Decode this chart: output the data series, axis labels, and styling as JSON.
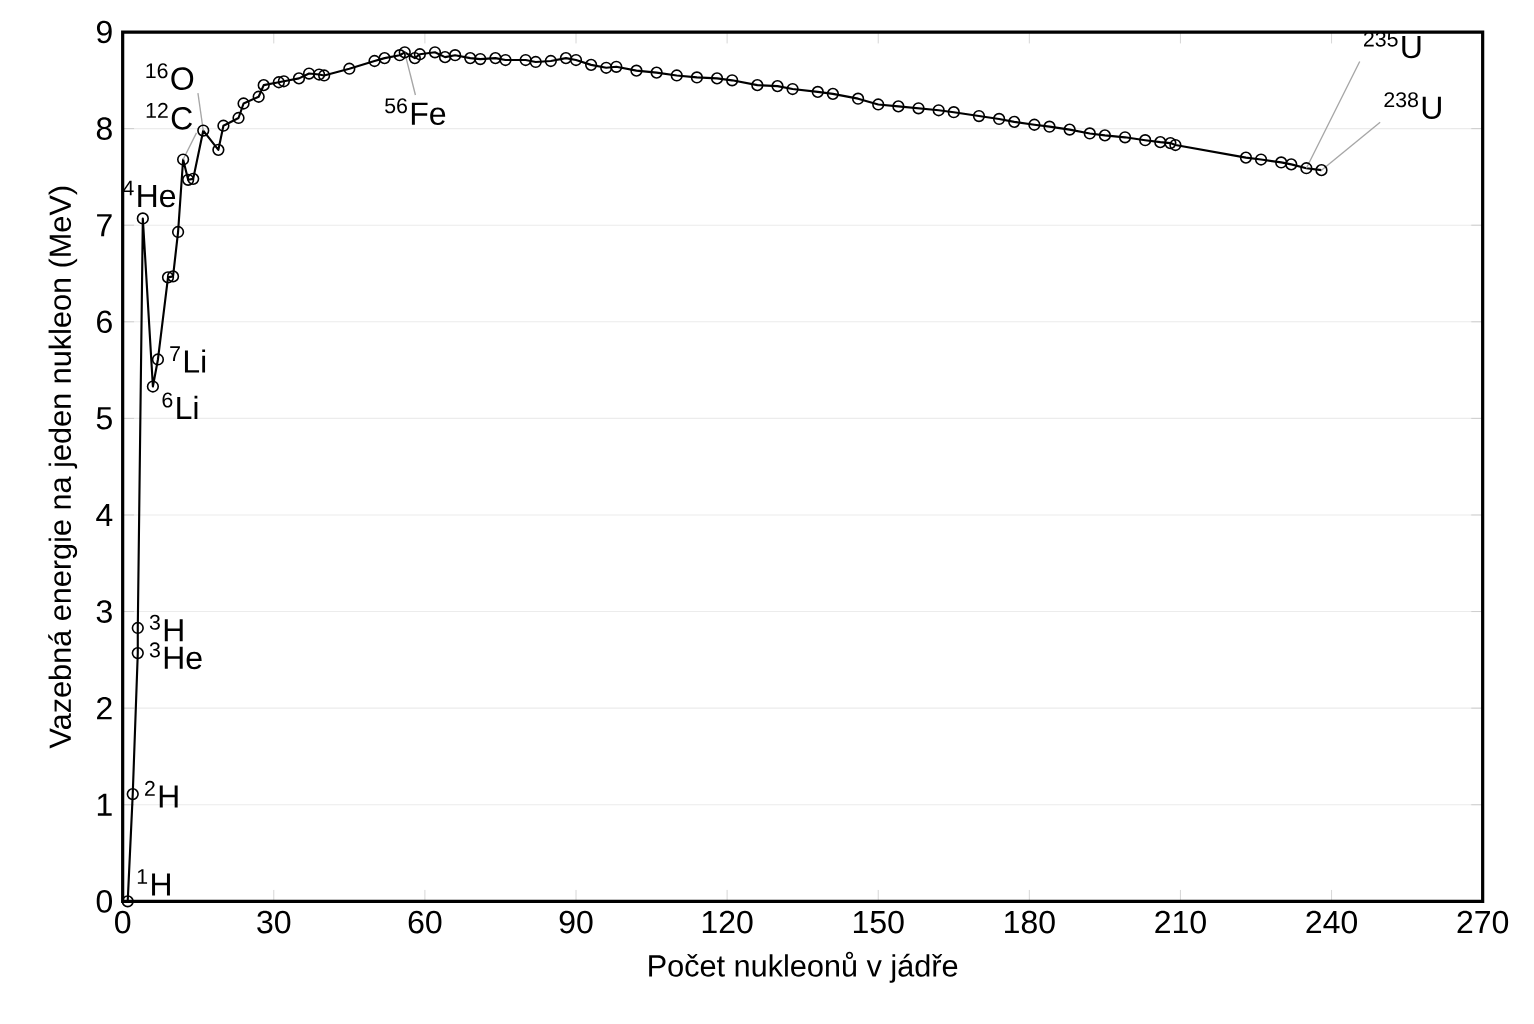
{
  "chart_data": {
    "type": "line",
    "xlabel": "Počet nukleonů v jádře",
    "ylabel": "Vazebná energie na jeden nukleon (MeV)",
    "xlim": [
      0,
      270
    ],
    "xticks": [
      0,
      30,
      60,
      90,
      120,
      150,
      180,
      210,
      240,
      270
    ],
    "ylim": [
      0,
      9
    ],
    "yticks": [
      0,
      1,
      2,
      3,
      4,
      5,
      6,
      7,
      8,
      9
    ],
    "grid": "y",
    "marker": "circle",
    "line_style": "solid",
    "series": [
      {
        "color": "#000000",
        "x": [
          1,
          2,
          3,
          3,
          4,
          6,
          7,
          9,
          10,
          11,
          12,
          13,
          14,
          16,
          19,
          20,
          23,
          24,
          27,
          28,
          31,
          32,
          35,
          37,
          39,
          40,
          45,
          50,
          52,
          55,
          56,
          58,
          59,
          62,
          64,
          66,
          69,
          71,
          74,
          76,
          80,
          82,
          85,
          88,
          90,
          93,
          96,
          98,
          102,
          106,
          110,
          114,
          118,
          121,
          126,
          130,
          133,
          138,
          141,
          146,
          150,
          154,
          158,
          162,
          165,
          170,
          174,
          177,
          181,
          184,
          188,
          192,
          195,
          199,
          203,
          206,
          208,
          209,
          223,
          226,
          230,
          232,
          235,
          238
        ],
        "values": [
          0,
          1.11,
          2.57,
          2.83,
          7.07,
          5.33,
          5.61,
          6.46,
          6.47,
          6.93,
          7.68,
          7.47,
          7.48,
          7.98,
          7.78,
          8.03,
          8.11,
          8.26,
          8.33,
          8.45,
          8.48,
          8.49,
          8.52,
          8.57,
          8.56,
          8.55,
          8.62,
          8.7,
          8.73,
          8.76,
          8.79,
          8.73,
          8.77,
          8.79,
          8.74,
          8.76,
          8.73,
          8.72,
          8.73,
          8.71,
          8.71,
          8.69,
          8.7,
          8.73,
          8.71,
          8.66,
          8.63,
          8.64,
          8.6,
          8.58,
          8.55,
          8.53,
          8.52,
          8.5,
          8.45,
          8.44,
          8.41,
          8.38,
          8.36,
          8.31,
          8.25,
          8.23,
          8.21,
          8.19,
          8.17,
          8.13,
          8.1,
          8.07,
          8.04,
          8.02,
          7.99,
          7.95,
          7.93,
          7.91,
          7.88,
          7.86,
          7.85,
          7.83,
          7.7,
          7.68,
          7.65,
          7.63,
          7.59,
          7.57
        ]
      }
    ],
    "annotations": [
      {
        "text": "$^{1}$H",
        "x": 1,
        "y": 0
      },
      {
        "text": "$^{2}$H",
        "x": 2,
        "y": 1.11
      },
      {
        "text": "$^{3}$H",
        "x": 3,
        "y": 2.83
      },
      {
        "text": "$^{3}$He",
        "x": 3,
        "y": 2.57
      },
      {
        "text": "$^{4}$He",
        "x": 4,
        "y": 7.07
      },
      {
        "text": "$^{6}$Li",
        "x": 6,
        "y": 5.33
      },
      {
        "text": "$^{7}$Li",
        "x": 7,
        "y": 5.61
      },
      {
        "text": "$^{12}$C",
        "x": 12,
        "y": 7.68
      },
      {
        "text": "$^{16}$O",
        "x": 16,
        "y": 7.98
      },
      {
        "text": "$^{56}$Fe",
        "x": 56,
        "y": 8.79
      },
      {
        "text": "$^{235}$U",
        "x": 235,
        "y": 7.59
      },
      {
        "text": "$^{238}$U",
        "x": 238,
        "y": 7.57
      }
    ]
  }
}
